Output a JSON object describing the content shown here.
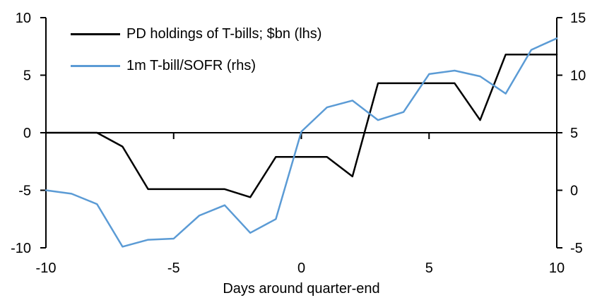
{
  "chart_data": {
    "type": "line",
    "title": "",
    "xlabel": "Days around quarter-end",
    "grid": "off",
    "legend_position": "top-left",
    "x": [
      -10,
      -9,
      -8,
      -7,
      -6,
      -5,
      -4,
      -3,
      -2,
      -1,
      0,
      1,
      2,
      3,
      4,
      5,
      6,
      7,
      8,
      9,
      10
    ],
    "x_ticks": [
      -10,
      -5,
      0,
      5,
      10
    ],
    "left_axis": {
      "range": [
        -10,
        10
      ],
      "ticks": [
        10,
        5,
        0,
        -5,
        -10
      ]
    },
    "right_axis": {
      "range": [
        -5,
        15
      ],
      "ticks": [
        15,
        10,
        5,
        0,
        -5
      ]
    },
    "series": [
      {
        "name": "PD holdings of T-bills; $bn (lhs)",
        "axis": "left",
        "color": "#000000",
        "values": [
          0,
          0,
          0,
          -1.2,
          -4.9,
          -4.9,
          -4.9,
          -4.9,
          -5.6,
          -2.1,
          -2.1,
          -2.1,
          -3.8,
          4.3,
          4.3,
          4.3,
          4.3,
          1.1,
          6.8,
          6.8,
          6.8
        ]
      },
      {
        "name": "1m T-bill/SOFR (rhs)",
        "axis": "right",
        "color": "#5B9BD5",
        "values": [
          0,
          -0.3,
          -1.2,
          -4.9,
          -4.3,
          -4.2,
          -2.2,
          -1.3,
          -3.7,
          -2.5,
          5.1,
          7.2,
          7.8,
          6.1,
          6.8,
          10.1,
          10.4,
          9.9,
          8.4,
          12.2,
          13.2
        ]
      }
    ]
  },
  "colors": {
    "background": "#FFFFFF",
    "text": "#000000",
    "axis": "#000000",
    "series_black": "#000000",
    "series_blue": "#5B9BD5"
  }
}
